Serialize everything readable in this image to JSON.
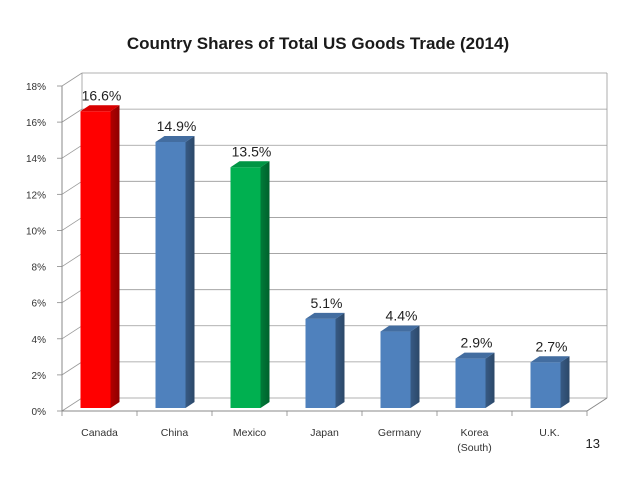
{
  "page": {
    "number": "13"
  },
  "colors": {
    "canada": "#ff0000",
    "china": "#4f81bd",
    "mexico": "#00b050",
    "japan": "#4f81bd",
    "germany": "#4f81bd",
    "korea": "#4f81bd",
    "uk": "#4f81bd",
    "grid": "#999999",
    "axis": "#888888"
  },
  "chart_data": {
    "type": "bar",
    "title": "Country Shares of Total US Goods Trade (2014)",
    "xlabel": "",
    "ylabel": "",
    "categories": [
      "Canada",
      "China",
      "Mexico",
      "Japan",
      "Germany",
      "Korea\n(South)",
      "U.K."
    ],
    "values": [
      16.6,
      14.9,
      13.5,
      5.1,
      4.4,
      2.9,
      2.7
    ],
    "value_labels": [
      "16.6%",
      "14.9%",
      "13.5%",
      "5.1%",
      "4.4%",
      "2.9%",
      "2.7%"
    ],
    "ylim": [
      0,
      18
    ],
    "y_ticks": [
      0,
      2,
      4,
      6,
      8,
      10,
      12,
      14,
      16,
      18
    ],
    "y_tick_labels": [
      "0%",
      "2%",
      "4%",
      "6%",
      "8%",
      "10%",
      "12%",
      "14%",
      "16%",
      "18%"
    ],
    "grid": true,
    "legend": false,
    "style": "3d-columns"
  }
}
